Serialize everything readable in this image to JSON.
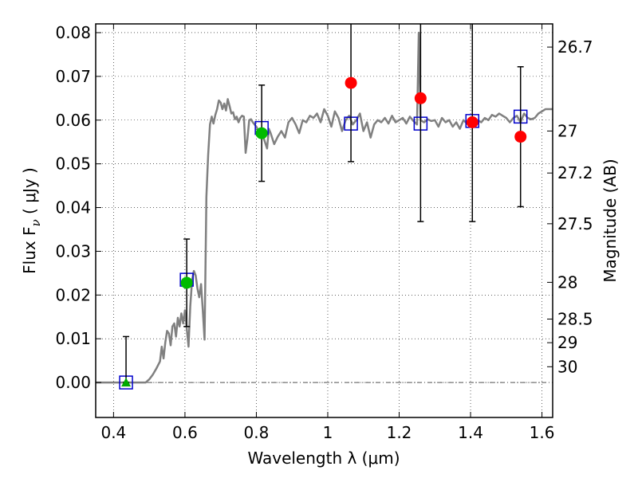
{
  "chart_data": {
    "type": "scatter",
    "xlabel": "Wavelength  λ (μm)",
    "ylabel": "Flux  F",
    "ylabel_sub": "ν",
    "ylabel_unit": "  ( μJy )",
    "y2label": "Magnitude (AB)",
    "xlim": [
      0.35,
      1.63
    ],
    "ylim": [
      -0.008,
      0.082
    ],
    "xticks": [
      0.4,
      0.6,
      0.8,
      1.0,
      1.2,
      1.4,
      1.6
    ],
    "xtick_labels": [
      "0.4",
      "0.6",
      "0.8",
      "1",
      "1.2",
      "1.4",
      "1.6"
    ],
    "yticks": [
      0.0,
      0.01,
      0.02,
      0.03,
      0.04,
      0.05,
      0.06,
      0.07,
      0.08
    ],
    "ytick_labels": [
      "0.00",
      "0.01",
      "0.02",
      "0.03",
      "0.04",
      "0.05",
      "0.06",
      "0.07",
      "0.08"
    ],
    "y2ticks": [
      {
        "label": "26.7",
        "flux": 0.0767
      },
      {
        "label": "27",
        "flux": 0.0575
      },
      {
        "label": "27.2",
        "flux": 0.0479
      },
      {
        "label": "27.5",
        "flux": 0.0363
      },
      {
        "label": "28",
        "flux": 0.0229
      },
      {
        "label": "28.5",
        "flux": 0.0145
      },
      {
        "label": "29",
        "flux": 0.0091
      },
      {
        "label": "30",
        "flux": 0.0036
      }
    ],
    "grid": true,
    "zero_line": true,
    "sed_model": {
      "color": "#808080",
      "points": [
        [
          0.35,
          0.0
        ],
        [
          0.49,
          0.0
        ],
        [
          0.5,
          0.0007
        ],
        [
          0.51,
          0.0018
        ],
        [
          0.52,
          0.0032
        ],
        [
          0.53,
          0.0048
        ],
        [
          0.535,
          0.0082
        ],
        [
          0.54,
          0.0055
        ],
        [
          0.545,
          0.0092
        ],
        [
          0.55,
          0.0118
        ],
        [
          0.555,
          0.0112
        ],
        [
          0.56,
          0.0085
        ],
        [
          0.565,
          0.0128
        ],
        [
          0.57,
          0.0135
        ],
        [
          0.575,
          0.0105
        ],
        [
          0.58,
          0.0148
        ],
        [
          0.585,
          0.0128
        ],
        [
          0.59,
          0.0158
        ],
        [
          0.595,
          0.0135
        ],
        [
          0.6,
          0.0165
        ],
        [
          0.61,
          0.0082
        ],
        [
          0.615,
          0.0175
        ],
        [
          0.62,
          0.0235
        ],
        [
          0.625,
          0.0255
        ],
        [
          0.63,
          0.0245
        ],
        [
          0.635,
          0.0215
        ],
        [
          0.64,
          0.0195
        ],
        [
          0.645,
          0.0225
        ],
        [
          0.65,
          0.0165
        ],
        [
          0.655,
          0.0098
        ],
        [
          0.66,
          0.0425
        ],
        [
          0.665,
          0.052
        ],
        [
          0.67,
          0.059
        ],
        [
          0.675,
          0.0608
        ],
        [
          0.68,
          0.0592
        ],
        [
          0.685,
          0.0612
        ],
        [
          0.69,
          0.0625
        ],
        [
          0.695,
          0.0645
        ],
        [
          0.7,
          0.064
        ],
        [
          0.705,
          0.0625
        ],
        [
          0.71,
          0.0638
        ],
        [
          0.715,
          0.0622
        ],
        [
          0.72,
          0.0648
        ],
        [
          0.725,
          0.0632
        ],
        [
          0.73,
          0.0615
        ],
        [
          0.735,
          0.0618
        ],
        [
          0.74,
          0.0602
        ],
        [
          0.745,
          0.0608
        ],
        [
          0.75,
          0.0595
        ],
        [
          0.755,
          0.0605
        ],
        [
          0.76,
          0.061
        ],
        [
          0.765,
          0.0608
        ],
        [
          0.77,
          0.0525
        ],
        [
          0.775,
          0.0558
        ],
        [
          0.78,
          0.06
        ],
        [
          0.785,
          0.0602
        ],
        [
          0.79,
          0.0595
        ],
        [
          0.8,
          0.0585
        ],
        [
          0.81,
          0.057
        ],
        [
          0.82,
          0.056
        ],
        [
          0.83,
          0.0535
        ],
        [
          0.835,
          0.058
        ],
        [
          0.84,
          0.057
        ],
        [
          0.85,
          0.0545
        ],
        [
          0.86,
          0.0562
        ],
        [
          0.87,
          0.0575
        ],
        [
          0.88,
          0.056
        ],
        [
          0.89,
          0.0595
        ],
        [
          0.9,
          0.0605
        ],
        [
          0.91,
          0.059
        ],
        [
          0.92,
          0.057
        ],
        [
          0.93,
          0.06
        ],
        [
          0.94,
          0.0595
        ],
        [
          0.95,
          0.061
        ],
        [
          0.96,
          0.0605
        ],
        [
          0.97,
          0.0615
        ],
        [
          0.98,
          0.0595
        ],
        [
          0.99,
          0.0625
        ],
        [
          1.0,
          0.061
        ],
        [
          1.01,
          0.0585
        ],
        [
          1.02,
          0.062
        ],
        [
          1.03,
          0.0605
        ],
        [
          1.04,
          0.0575
        ],
        [
          1.05,
          0.06
        ],
        [
          1.06,
          0.061
        ],
        [
          1.07,
          0.059
        ],
        [
          1.08,
          0.06
        ],
        [
          1.09,
          0.0615
        ],
        [
          1.1,
          0.0575
        ],
        [
          1.11,
          0.0595
        ],
        [
          1.12,
          0.056
        ],
        [
          1.13,
          0.059
        ],
        [
          1.14,
          0.06
        ],
        [
          1.15,
          0.0595
        ],
        [
          1.16,
          0.0605
        ],
        [
          1.17,
          0.0592
        ],
        [
          1.18,
          0.061
        ],
        [
          1.19,
          0.0595
        ],
        [
          1.2,
          0.06
        ],
        [
          1.21,
          0.0605
        ],
        [
          1.22,
          0.0592
        ],
        [
          1.23,
          0.0608
        ],
        [
          1.24,
          0.0598
        ],
        [
          1.25,
          0.059
        ],
        [
          1.255,
          0.08
        ],
        [
          1.26,
          0.06
        ],
        [
          1.27,
          0.0595
        ],
        [
          1.28,
          0.0602
        ],
        [
          1.29,
          0.0598
        ],
        [
          1.3,
          0.06
        ],
        [
          1.31,
          0.0585
        ],
        [
          1.32,
          0.0605
        ],
        [
          1.33,
          0.0595
        ],
        [
          1.34,
          0.06
        ],
        [
          1.35,
          0.0585
        ],
        [
          1.36,
          0.0595
        ],
        [
          1.37,
          0.058
        ],
        [
          1.38,
          0.06
        ],
        [
          1.39,
          0.0592
        ],
        [
          1.4,
          0.0605
        ],
        [
          1.41,
          0.0598
        ],
        [
          1.42,
          0.06
        ],
        [
          1.43,
          0.0595
        ],
        [
          1.44,
          0.0605
        ],
        [
          1.45,
          0.06
        ],
        [
          1.46,
          0.0612
        ],
        [
          1.47,
          0.0608
        ],
        [
          1.48,
          0.0615
        ],
        [
          1.49,
          0.061
        ],
        [
          1.5,
          0.0605
        ],
        [
          1.51,
          0.0595
        ],
        [
          1.52,
          0.0605
        ],
        [
          1.53,
          0.061
        ],
        [
          1.54,
          0.0595
        ],
        [
          1.55,
          0.0615
        ],
        [
          1.56,
          0.0605
        ],
        [
          1.57,
          0.0602
        ],
        [
          1.58,
          0.0605
        ],
        [
          1.59,
          0.0615
        ],
        [
          1.6,
          0.062
        ],
        [
          1.61,
          0.0625
        ],
        [
          1.62,
          0.0625
        ],
        [
          1.63,
          0.0625
        ]
      ]
    },
    "model_points": {
      "color": "#0000cc",
      "points": [
        [
          0.435,
          0.0
        ],
        [
          0.605,
          0.0235
        ],
        [
          0.815,
          0.0582
        ],
        [
          1.065,
          0.0592
        ],
        [
          1.26,
          0.0592
        ],
        [
          1.405,
          0.0598
        ],
        [
          1.54,
          0.0608
        ]
      ]
    },
    "observed": [
      {
        "x": 0.435,
        "y": 0.0,
        "yerr_low": 0.0,
        "yerr_high": 0.0105,
        "color": "#00aa00",
        "marker": "triangle"
      },
      {
        "x": 0.605,
        "y": 0.0228,
        "yerr_low": 0.0128,
        "yerr_high": 0.0328,
        "color": "#00bb00",
        "marker": "circle"
      },
      {
        "x": 0.815,
        "y": 0.057,
        "yerr_low": 0.046,
        "yerr_high": 0.068,
        "color": "#00bb00",
        "marker": "circle"
      },
      {
        "x": 1.065,
        "y": 0.0685,
        "yerr_low": 0.0505,
        "yerr_high": 0.083,
        "color": "#ff0000",
        "marker": "circle"
      },
      {
        "x": 1.26,
        "y": 0.065,
        "yerr_low": 0.0368,
        "yerr_high": 0.083,
        "color": "#ff0000",
        "marker": "circle"
      },
      {
        "x": 1.405,
        "y": 0.0595,
        "yerr_low": 0.0368,
        "yerr_high": 0.083,
        "color": "#ff0000",
        "marker": "circle"
      },
      {
        "x": 1.54,
        "y": 0.0562,
        "yerr_low": 0.0402,
        "yerr_high": 0.0722,
        "color": "#ff0000",
        "marker": "circle"
      }
    ]
  }
}
